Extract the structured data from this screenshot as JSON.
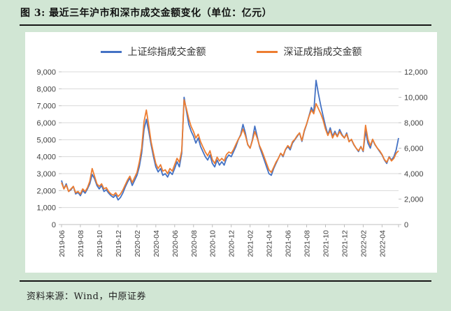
{
  "title": {
    "text": "图 3: 最近三年沪市和深市成交金额变化（单位：亿元）"
  },
  "source": {
    "text": "资料来源：Wind，中原证券"
  },
  "colors": {
    "page_background": "#d1e6d4",
    "panel_background": "#ffffff",
    "rule": "#161616",
    "gridline": "#d9d9d9",
    "axis_line": "#bfbfbf",
    "axis_text": "#404040",
    "series_shanghai": "#4472C4",
    "series_shenzhen": "#ED7D31"
  },
  "chart_data": {
    "type": "line",
    "unit": "亿元",
    "x_start": "2019-06",
    "x_end": "2022-05",
    "points_per_month": 4,
    "x_tick_labels": [
      "2019-06",
      "2019-08",
      "2019-10",
      "2019-12",
      "2020-02",
      "2020-04",
      "2020-06",
      "2020-08",
      "2020-10",
      "2020-12",
      "2021-02",
      "2021-04",
      "2021-06",
      "2021-08",
      "2021-10",
      "2021-12",
      "2022-02",
      "2022-04"
    ],
    "left_axis": {
      "min": 0,
      "max": 9000,
      "step": 1000,
      "tick_labels": [
        "0",
        "1,000",
        "2,000",
        "3,000",
        "4,000",
        "5,000",
        "6,000",
        "7,000",
        "8,000",
        "9,000"
      ]
    },
    "right_axis": {
      "min": 0,
      "max": 12000,
      "step": 2000,
      "tick_labels": [
        "0",
        "2,000",
        "4,000",
        "6,000",
        "8,000",
        "10,000",
        "12,000"
      ]
    },
    "grid": "horizontal",
    "legend_position": "top-center",
    "series": [
      {
        "name": "上证综指成交金额",
        "axis": "left",
        "color": "#4472C4",
        "values": [
          2600,
          2100,
          2400,
          1950,
          2050,
          2250,
          1800,
          1900,
          1700,
          2000,
          1850,
          2100,
          2400,
          2950,
          2700,
          2300,
          2100,
          2300,
          1950,
          2050,
          1850,
          1700,
          1600,
          1750,
          1450,
          1600,
          1850,
          2200,
          2500,
          2750,
          2300,
          2600,
          2900,
          3400,
          4200,
          5600,
          6200,
          5500,
          4700,
          4000,
          3400,
          3100,
          3300,
          2900,
          3000,
          2800,
          3100,
          2950,
          3300,
          3700,
          3400,
          4200,
          7500,
          6700,
          5900,
          5500,
          5200,
          4800,
          5100,
          4600,
          4300,
          4000,
          3800,
          4100,
          3600,
          3400,
          3800,
          3500,
          3700,
          3500,
          3900,
          4100,
          4000,
          4300,
          4600,
          5000,
          5300,
          5900,
          5400,
          4700,
          4500,
          5000,
          5800,
          5200,
          4600,
          4200,
          3800,
          3400,
          3000,
          2900,
          3300,
          3600,
          3900,
          4200,
          4000,
          4400,
          4600,
          4400,
          4800,
          5000,
          5200,
          5400,
          4900,
          5500,
          5900,
          6400,
          6900,
          6600,
          8500,
          7700,
          7000,
          6400,
          5800,
          5300,
          5700,
          5200,
          5500,
          5200,
          5600,
          5300,
          5100,
          5400,
          4900,
          5000,
          4700,
          4500,
          4300,
          4600,
          4300,
          5500,
          4800,
          4500,
          5000,
          4700,
          4500,
          4300,
          4100,
          3800,
          3600,
          4000,
          3800,
          4000,
          4400,
          5100
        ]
      },
      {
        "name": "深证成指成交金额",
        "axis": "right",
        "color": "#ED7D31",
        "values": [
          3300,
          2800,
          3100,
          2600,
          2800,
          3000,
          2500,
          2600,
          2400,
          2800,
          2600,
          2900,
          3400,
          4400,
          3800,
          3200,
          3000,
          3200,
          2800,
          2900,
          2600,
          2400,
          2300,
          2500,
          2200,
          2400,
          2700,
          3100,
          3500,
          3800,
          3300,
          3700,
          4100,
          4900,
          6000,
          8100,
          9000,
          7800,
          6500,
          5600,
          4800,
          4400,
          4700,
          4200,
          4300,
          4000,
          4400,
          4200,
          4700,
          5200,
          4900,
          5800,
          9800,
          9100,
          8300,
          7700,
          7300,
          6800,
          7100,
          6500,
          6100,
          5700,
          5400,
          5800,
          5100,
          4800,
          5300,
          5000,
          5200,
          5000,
          5500,
          5700,
          5600,
          5900,
          6300,
          6700,
          7000,
          7500,
          7000,
          6300,
          6000,
          6600,
          7300,
          6800,
          6200,
          5800,
          5300,
          4800,
          4300,
          4100,
          4500,
          4900,
          5200,
          5600,
          5400,
          5900,
          6200,
          6000,
          6500,
          6700,
          7000,
          7200,
          6600,
          7400,
          7900,
          8500,
          9000,
          8700,
          9500,
          9100,
          8700,
          8200,
          7500,
          7000,
          7400,
          6800,
          7200,
          6900,
          7300,
          7000,
          6800,
          7100,
          6500,
          6700,
          6300,
          6000,
          5800,
          6100,
          5800,
          7800,
          6700,
          6200,
          6700,
          6300,
          6000,
          5800,
          5500,
          5100,
          4900,
          5300,
          5000,
          5200,
          5600,
          5800
        ]
      }
    ]
  }
}
